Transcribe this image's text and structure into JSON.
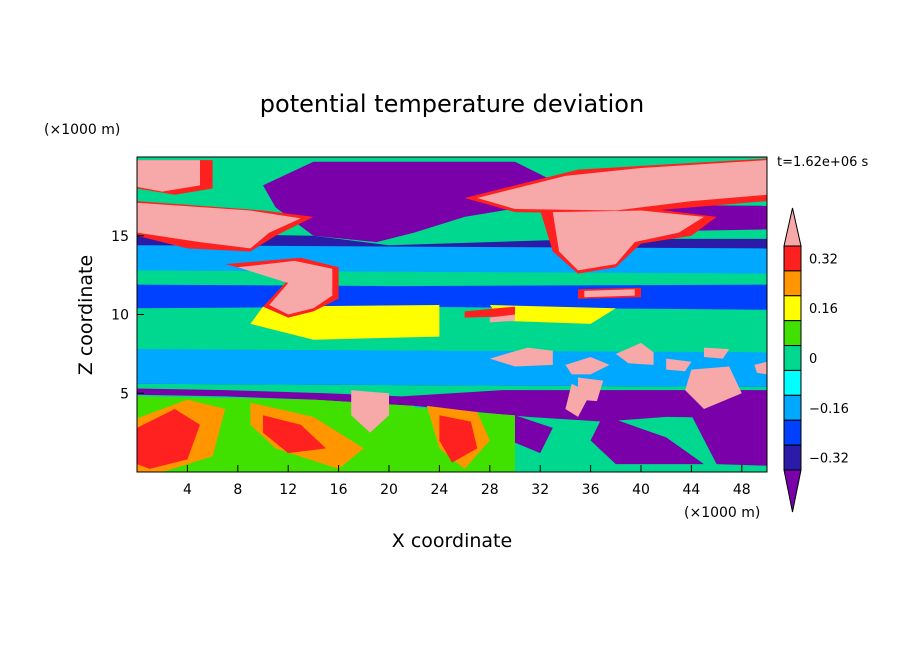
{
  "chart_data": {
    "type": "heatmap",
    "title": "potential temperature deviation",
    "time_label": "t=1.62e+06 s",
    "xlabel": "X coordinate",
    "ylabel": "Z coordinate",
    "x_unit": "(×1000 m)",
    "y_unit": "(×1000 m)",
    "xlim": [
      0,
      50
    ],
    "ylim": [
      0,
      20
    ],
    "x_ticks": [
      4,
      8,
      12,
      16,
      20,
      24,
      28,
      32,
      36,
      40,
      44,
      48
    ],
    "y_ticks": [
      5,
      10,
      15
    ],
    "colorbar": {
      "levels": [
        -0.4,
        -0.32,
        -0.24,
        -0.16,
        -0.08,
        0,
        0.08,
        0.16,
        0.24,
        0.32,
        0.4
      ],
      "labels": [
        "0.32",
        "0.16",
        "0",
        "−0.16",
        "−0.32"
      ],
      "label_values": [
        0.32,
        0.16,
        0,
        -0.16,
        -0.32
      ],
      "colors": [
        "#7a00aa",
        "#2a1ca8",
        "#0040ff",
        "#00a8ff",
        "#00ffff",
        "#00d890",
        "#40e000",
        "#ffff00",
        "#ff9600",
        "#ff2020",
        "#f7a8a8"
      ],
      "extend": "both"
    },
    "regions": [
      {
        "level": -0.4,
        "points": [
          [
            14,
            19.7
          ],
          [
            30,
            19.7
          ],
          [
            33,
            18.5
          ],
          [
            32,
            17
          ],
          [
            26,
            16.2
          ],
          [
            22,
            15.2
          ],
          [
            19,
            14.6
          ],
          [
            14,
            15
          ],
          [
            11,
            16.8
          ],
          [
            10,
            18.2
          ]
        ]
      },
      {
        "level": -0.4,
        "points": [
          [
            34,
            17
          ],
          [
            50,
            16.9
          ],
          [
            50,
            15.4
          ],
          [
            43,
            15.3
          ],
          [
            36,
            15.8
          ]
        ]
      },
      {
        "level": -0.4,
        "points": [
          [
            0,
            5.3
          ],
          [
            7,
            5.2
          ],
          [
            15,
            5
          ],
          [
            21,
            4.8
          ],
          [
            29,
            5.2
          ],
          [
            50,
            5.2
          ],
          [
            50,
            3.4
          ],
          [
            42,
            3.5
          ],
          [
            37,
            3.2
          ],
          [
            31,
            3.5
          ],
          [
            22,
            4.2
          ],
          [
            14,
            4.6
          ],
          [
            7,
            4.8
          ],
          [
            0,
            4.9
          ]
        ]
      },
      {
        "level": -0.4,
        "points": [
          [
            30,
            3.6
          ],
          [
            33,
            2.8
          ],
          [
            32,
            1.2
          ],
          [
            29,
            2.2
          ]
        ]
      },
      {
        "level": -0.4,
        "points": [
          [
            37,
            3.6
          ],
          [
            42,
            2.2
          ],
          [
            45,
            0.5
          ],
          [
            38,
            0.5
          ],
          [
            36,
            2
          ]
        ]
      },
      {
        "level": -0.4,
        "points": [
          [
            44,
            3.6
          ],
          [
            50,
            3.8
          ],
          [
            50,
            0.4
          ],
          [
            46,
            0.5
          ]
        ]
      },
      {
        "level": -0.4,
        "points": [
          [
            16,
            4.4
          ],
          [
            18,
            2.5
          ],
          [
            17,
            0.6
          ],
          [
            15.5,
            2
          ]
        ]
      },
      {
        "level": -0.32,
        "points": [
          [
            0,
            15.2
          ],
          [
            14,
            15
          ],
          [
            20,
            14.4
          ],
          [
            28,
            14.6
          ],
          [
            36,
            14.8
          ],
          [
            50,
            14.8
          ],
          [
            50,
            14
          ],
          [
            36,
            13.8
          ],
          [
            24,
            13.4
          ],
          [
            14,
            13.2
          ],
          [
            0,
            13.6
          ]
        ]
      },
      {
        "level": -0.32,
        "points": [
          [
            0,
            11.8
          ],
          [
            50,
            11.7
          ],
          [
            50,
            10.5
          ],
          [
            0,
            10.6
          ]
        ]
      },
      {
        "level": -0.32,
        "points": [
          [
            0,
            7.2
          ],
          [
            50,
            7.1
          ],
          [
            50,
            5.4
          ],
          [
            0,
            5.6
          ]
        ]
      },
      {
        "level": -0.24,
        "points": [
          [
            0,
            11.9
          ],
          [
            20,
            11.8
          ],
          [
            50,
            11.9
          ],
          [
            50,
            10.3
          ],
          [
            20,
            10.5
          ],
          [
            0,
            10.4
          ]
        ]
      },
      {
        "level": -0.16,
        "points": [
          [
            0,
            14.4
          ],
          [
            50,
            14.2
          ],
          [
            50,
            12.6
          ],
          [
            0,
            12.8
          ]
        ]
      },
      {
        "level": -0.16,
        "points": [
          [
            0,
            7.8
          ],
          [
            50,
            7.6
          ],
          [
            50,
            5.4
          ],
          [
            0,
            5.6
          ]
        ]
      },
      {
        "level": 0.16,
        "points": [
          [
            10,
            10.5
          ],
          [
            24,
            10.6
          ],
          [
            24,
            8.6
          ],
          [
            14,
            8.4
          ],
          [
            9,
            9.4
          ]
        ]
      },
      {
        "level": 0.16,
        "points": [
          [
            28,
            10.6
          ],
          [
            38,
            10.4
          ],
          [
            36,
            9.4
          ],
          [
            29,
            9.6
          ]
        ]
      },
      {
        "level": 0.08,
        "points": [
          [
            0,
            4.8
          ],
          [
            14,
            4.6
          ],
          [
            22,
            4.2
          ],
          [
            22,
            0
          ],
          [
            0,
            0
          ]
        ]
      },
      {
        "level": 0.08,
        "points": [
          [
            20,
            4.2
          ],
          [
            30,
            3.6
          ],
          [
            30,
            0
          ],
          [
            20,
            0
          ]
        ]
      },
      {
        "level": 0.24,
        "points": [
          [
            0,
            3.4
          ],
          [
            4,
            4.6
          ],
          [
            7,
            4
          ],
          [
            6,
            1
          ],
          [
            2,
            0
          ],
          [
            0,
            0
          ]
        ]
      },
      {
        "level": 0.24,
        "points": [
          [
            9,
            4.4
          ],
          [
            14,
            3.5
          ],
          [
            18,
            1.5
          ],
          [
            16,
            0.2
          ],
          [
            11,
            1.5
          ],
          [
            9,
            3
          ]
        ]
      },
      {
        "level": 0.24,
        "points": [
          [
            23,
            4.2
          ],
          [
            27,
            3.8
          ],
          [
            28,
            2
          ],
          [
            26,
            0.2
          ],
          [
            24,
            1.5
          ]
        ]
      },
      {
        "level": 0.32,
        "points": [
          [
            0,
            2.8
          ],
          [
            3,
            4
          ],
          [
            5,
            3
          ],
          [
            4,
            0.8
          ],
          [
            1,
            0.2
          ],
          [
            0,
            0.5
          ]
        ]
      },
      {
        "level": 0.32,
        "points": [
          [
            10,
            3.6
          ],
          [
            13,
            3
          ],
          [
            15,
            1.5
          ],
          [
            12,
            1.2
          ],
          [
            10,
            2.5
          ]
        ]
      },
      {
        "level": 0.32,
        "points": [
          [
            24,
            3.6
          ],
          [
            26.5,
            3.2
          ],
          [
            27,
            1.5
          ],
          [
            25,
            0.6
          ],
          [
            24,
            2
          ]
        ]
      },
      {
        "level": 0.32,
        "points": [
          [
            0,
            19.8
          ],
          [
            6,
            19.8
          ],
          [
            6,
            18
          ],
          [
            3,
            17.6
          ],
          [
            0,
            18
          ]
        ]
      },
      {
        "level": 0.32,
        "points": [
          [
            26,
            17.4
          ],
          [
            35,
            19.2
          ],
          [
            50,
            19.9
          ],
          [
            50,
            17.2
          ],
          [
            38,
            16.4
          ],
          [
            30,
            16.5
          ]
        ]
      },
      {
        "level": 0.32,
        "points": [
          [
            0,
            17.2
          ],
          [
            10,
            16.6
          ],
          [
            14,
            16.2
          ],
          [
            11,
            15
          ],
          [
            9,
            14
          ],
          [
            4,
            14.2
          ],
          [
            0,
            15
          ]
        ]
      },
      {
        "level": 0.32,
        "points": [
          [
            32,
            16.6
          ],
          [
            40,
            16.8
          ],
          [
            46,
            16.2
          ],
          [
            44,
            15
          ],
          [
            40,
            14.5
          ],
          [
            38,
            13
          ],
          [
            35,
            12.6
          ],
          [
            33,
            14
          ]
        ]
      },
      {
        "level": 0.32,
        "points": [
          [
            7,
            13.2
          ],
          [
            13,
            13.6
          ],
          [
            16,
            13
          ],
          [
            16,
            11
          ],
          [
            14,
            10.2
          ],
          [
            12,
            9.8
          ],
          [
            10,
            10.5
          ],
          [
            12,
            12.2
          ]
        ]
      },
      {
        "level": 0.32,
        "points": [
          [
            35,
            11.6
          ],
          [
            40,
            11.7
          ],
          [
            40,
            11.1
          ],
          [
            35,
            11
          ]
        ]
      },
      {
        "level": 0.32,
        "points": [
          [
            26,
            10.2
          ],
          [
            30,
            10.5
          ],
          [
            30,
            9.9
          ],
          [
            26,
            9.8
          ]
        ]
      },
      {
        "level": 0.4,
        "points": [
          [
            0,
            19.8
          ],
          [
            5,
            19.8
          ],
          [
            5,
            18.2
          ],
          [
            2,
            17.8
          ],
          [
            0,
            18.1
          ]
        ]
      },
      {
        "level": 0.4,
        "points": [
          [
            27,
            17.4
          ],
          [
            34,
            18.8
          ],
          [
            40,
            19.3
          ],
          [
            50,
            19.8
          ],
          [
            50,
            17.6
          ],
          [
            44,
            17.2
          ],
          [
            38,
            16.6
          ],
          [
            30,
            16.7
          ]
        ]
      },
      {
        "level": 0.4,
        "points": [
          [
            0,
            17.1
          ],
          [
            9,
            16.6
          ],
          [
            13,
            16.1
          ],
          [
            10.5,
            15.2
          ],
          [
            9,
            14.2
          ],
          [
            5,
            14.6
          ],
          [
            0,
            15.2
          ]
        ]
      },
      {
        "level": 0.4,
        "points": [
          [
            33,
            16.5
          ],
          [
            40,
            16.6
          ],
          [
            45,
            16.2
          ],
          [
            43,
            15.2
          ],
          [
            39.5,
            14.6
          ],
          [
            38,
            13.2
          ],
          [
            35,
            12.8
          ],
          [
            33.5,
            14
          ]
        ]
      },
      {
        "level": 0.4,
        "points": [
          [
            8,
            13
          ],
          [
            12.5,
            13.4
          ],
          [
            15.5,
            12.9
          ],
          [
            15.5,
            11.2
          ],
          [
            14,
            10.4
          ],
          [
            12,
            10
          ],
          [
            10.5,
            10.6
          ],
          [
            12,
            12
          ]
        ]
      },
      {
        "level": 0.4,
        "points": [
          [
            35.5,
            11.5
          ],
          [
            39.5,
            11.6
          ],
          [
            39.5,
            11.2
          ],
          [
            35.5,
            11.1
          ]
        ]
      },
      {
        "level": 0.4,
        "points": [
          [
            28,
            9.8
          ],
          [
            30,
            10
          ],
          [
            30,
            9.6
          ],
          [
            28,
            9.5
          ]
        ]
      },
      {
        "level": 0.4,
        "points": [
          [
            28,
            7.2
          ],
          [
            31,
            7.9
          ],
          [
            33,
            7.7
          ],
          [
            33,
            6.8
          ],
          [
            30,
            6.7
          ]
        ]
      },
      {
        "level": 0.4,
        "points": [
          [
            34,
            6.8
          ],
          [
            36,
            7.3
          ],
          [
            37.5,
            6.8
          ],
          [
            36,
            6.2
          ],
          [
            34.5,
            6.2
          ]
        ]
      },
      {
        "level": 0.4,
        "points": [
          [
            38,
            7.5
          ],
          [
            40,
            8.2
          ],
          [
            41,
            7.6
          ],
          [
            41,
            6.8
          ],
          [
            39,
            6.9
          ]
        ]
      },
      {
        "level": 0.4,
        "points": [
          [
            42,
            7.2
          ],
          [
            44,
            7
          ],
          [
            43.5,
            6.4
          ],
          [
            42,
            6.5
          ]
        ]
      },
      {
        "level": 0.4,
        "points": [
          [
            45,
            7.9
          ],
          [
            47,
            7.8
          ],
          [
            46.5,
            7.2
          ],
          [
            45,
            7.3
          ]
        ]
      },
      {
        "level": 0.4,
        "points": [
          [
            44,
            6.5
          ],
          [
            47,
            6.7
          ],
          [
            48,
            5
          ],
          [
            45,
            4
          ],
          [
            43.5,
            5.2
          ]
        ]
      },
      {
        "level": 0.4,
        "points": [
          [
            49,
            6.8
          ],
          [
            50,
            7
          ],
          [
            50,
            6.2
          ],
          [
            49.2,
            6.3
          ]
        ]
      },
      {
        "level": 0.4,
        "points": [
          [
            35,
            6
          ],
          [
            37,
            5.8
          ],
          [
            36.5,
            4.5
          ],
          [
            35,
            4.6
          ]
        ]
      },
      {
        "level": 0.4,
        "points": [
          [
            17,
            5.2
          ],
          [
            20,
            5
          ],
          [
            20,
            3.6
          ],
          [
            18.5,
            2.5
          ],
          [
            17,
            3.6
          ]
        ]
      },
      {
        "level": 0.4,
        "points": [
          [
            34.5,
            5.6
          ],
          [
            36,
            5
          ],
          [
            35,
            3.5
          ],
          [
            34,
            4
          ]
        ]
      }
    ]
  }
}
